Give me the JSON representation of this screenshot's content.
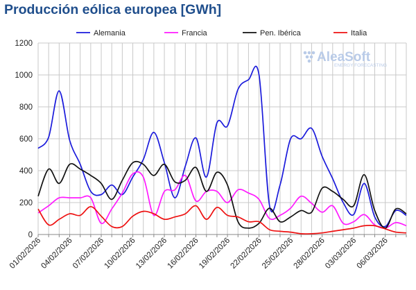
{
  "page": {
    "title": "Producción eólica europea [GWh]"
  },
  "logo": {
    "name": "AleaSoft",
    "tagline": "ENERGY FORECASTING"
  },
  "chart_data": {
    "type": "line",
    "title": "Producción eólica europea [GWh]",
    "xlabel": "",
    "ylabel": "",
    "ylim": [
      0,
      1200
    ],
    "yticks": [
      0,
      200,
      400,
      600,
      800,
      1000,
      1200
    ],
    "grid": true,
    "legend_position": "top",
    "x_labels": [
      "01/02/2026",
      "04/02/2026",
      "07/02/2026",
      "10/02/2026",
      "13/02/2026",
      "16/02/2026",
      "19/02/2026",
      "22/02/2026",
      "25/02/2026",
      "28/02/2026",
      "03/03/2026",
      "06/03/2026"
    ],
    "x": [
      "01/02",
      "02/02",
      "03/02",
      "04/02",
      "05/02",
      "06/02",
      "07/02",
      "08/02",
      "09/02",
      "10/02",
      "11/02",
      "12/02",
      "13/02",
      "14/02",
      "15/02",
      "16/02",
      "17/02",
      "18/02",
      "19/02",
      "20/02",
      "21/02",
      "22/02",
      "23/02",
      "24/02",
      "25/02",
      "26/02",
      "27/02",
      "28/02",
      "01/03",
      "02/03",
      "03/03",
      "04/03",
      "05/03",
      "06/03",
      "07/03",
      "08/03"
    ],
    "series": [
      {
        "name": "Alemania",
        "color": "#1a1adb",
        "values": [
          540,
          610,
          900,
          590,
          440,
          270,
          250,
          310,
          250,
          360,
          470,
          640,
          450,
          230,
          430,
          605,
          360,
          700,
          680,
          910,
          970,
          1000,
          180,
          310,
          600,
          600,
          665,
          490,
          350,
          200,
          125,
          320,
          110,
          50,
          150,
          120
        ]
      },
      {
        "name": "Francia",
        "color": "#ff1aff",
        "values": [
          135,
          180,
          230,
          230,
          230,
          230,
          70,
          160,
          260,
          380,
          360,
          120,
          270,
          280,
          370,
          210,
          270,
          270,
          200,
          280,
          260,
          220,
          100,
          120,
          165,
          240,
          195,
          140,
          180,
          70,
          80,
          125,
          60,
          40,
          75,
          55
        ]
      },
      {
        "name": "Pen. Ibérica",
        "color": "#111111",
        "values": [
          240,
          410,
          320,
          440,
          410,
          370,
          320,
          220,
          340,
          450,
          440,
          370,
          440,
          330,
          340,
          420,
          270,
          390,
          310,
          80,
          40,
          70,
          165,
          80,
          110,
          150,
          140,
          290,
          270,
          220,
          180,
          375,
          150,
          40,
          160,
          130
        ]
      },
      {
        "name": "Italia",
        "color": "#ee1111",
        "values": [
          160,
          60,
          95,
          130,
          120,
          175,
          115,
          50,
          50,
          115,
          145,
          130,
          95,
          110,
          130,
          180,
          95,
          170,
          120,
          110,
          80,
          80,
          30,
          20,
          15,
          5,
          5,
          10,
          20,
          30,
          40,
          55,
          55,
          35,
          15,
          10
        ]
      }
    ]
  }
}
